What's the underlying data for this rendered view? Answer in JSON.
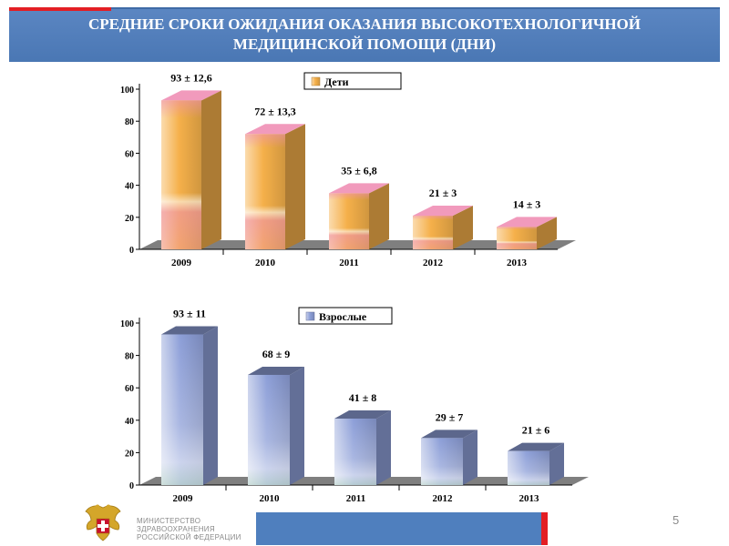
{
  "header": {
    "title_line1": "СРЕДНИЕ СРОКИ ОЖИДАНИЯ ОКАЗАНИЯ ВЫСОКОТЕХНОЛОГИЧНОЙ",
    "title_line2": "МЕДИЦИНСКОЙ ПОМОЩИ  (ДНИ)"
  },
  "chart_data": [
    {
      "type": "bar",
      "categories": [
        "2009",
        "2010",
        "2011",
        "2012",
        "2013"
      ],
      "series": [
        {
          "name": "Дети",
          "values": [
            93,
            72,
            35,
            21,
            14
          ]
        }
      ],
      "data_labels": [
        "93 ± 12,6",
        "72 ± 13,3",
        "35 ± 6,8",
        "21 ± 3",
        "14 ± 3"
      ],
      "ylim": [
        0,
        100
      ],
      "yticks": [
        "0",
        "20",
        "40",
        "60",
        "80",
        "100"
      ],
      "legend_position": "top-right",
      "style": "3d",
      "colors": {
        "main": "#f5b04a",
        "accent": "#ef8fb4"
      }
    },
    {
      "type": "bar",
      "categories": [
        "2009",
        "2010",
        "2011",
        "2012",
        "2013"
      ],
      "series": [
        {
          "name": "Взрослые",
          "values": [
            93,
            68,
            41,
            29,
            21
          ]
        }
      ],
      "data_labels": [
        "93 ± 11",
        "68 ± 9",
        "41 ± 8",
        "29 ± 7",
        "21 ± 6"
      ],
      "ylim": [
        0,
        100
      ],
      "yticks": [
        "0",
        "20",
        "40",
        "60",
        "80",
        "100"
      ],
      "legend_position": "top-center",
      "style": "3d",
      "colors": {
        "main": "#8d9fd8",
        "accent": "#5f6fa8"
      }
    }
  ],
  "footer": {
    "ministry_line1": "МИНИСТЕРСТВО",
    "ministry_line2": "ЗДРАВООХРАНЕНИЯ",
    "ministry_line3": "РОССИЙСКОЙ ФЕДЕРАЦИИ",
    "page_number": "5",
    "logo_icon": "coat-of-arms-icon",
    "colors": {
      "bar": "#4f7fbe",
      "red": "#e31e24"
    }
  }
}
